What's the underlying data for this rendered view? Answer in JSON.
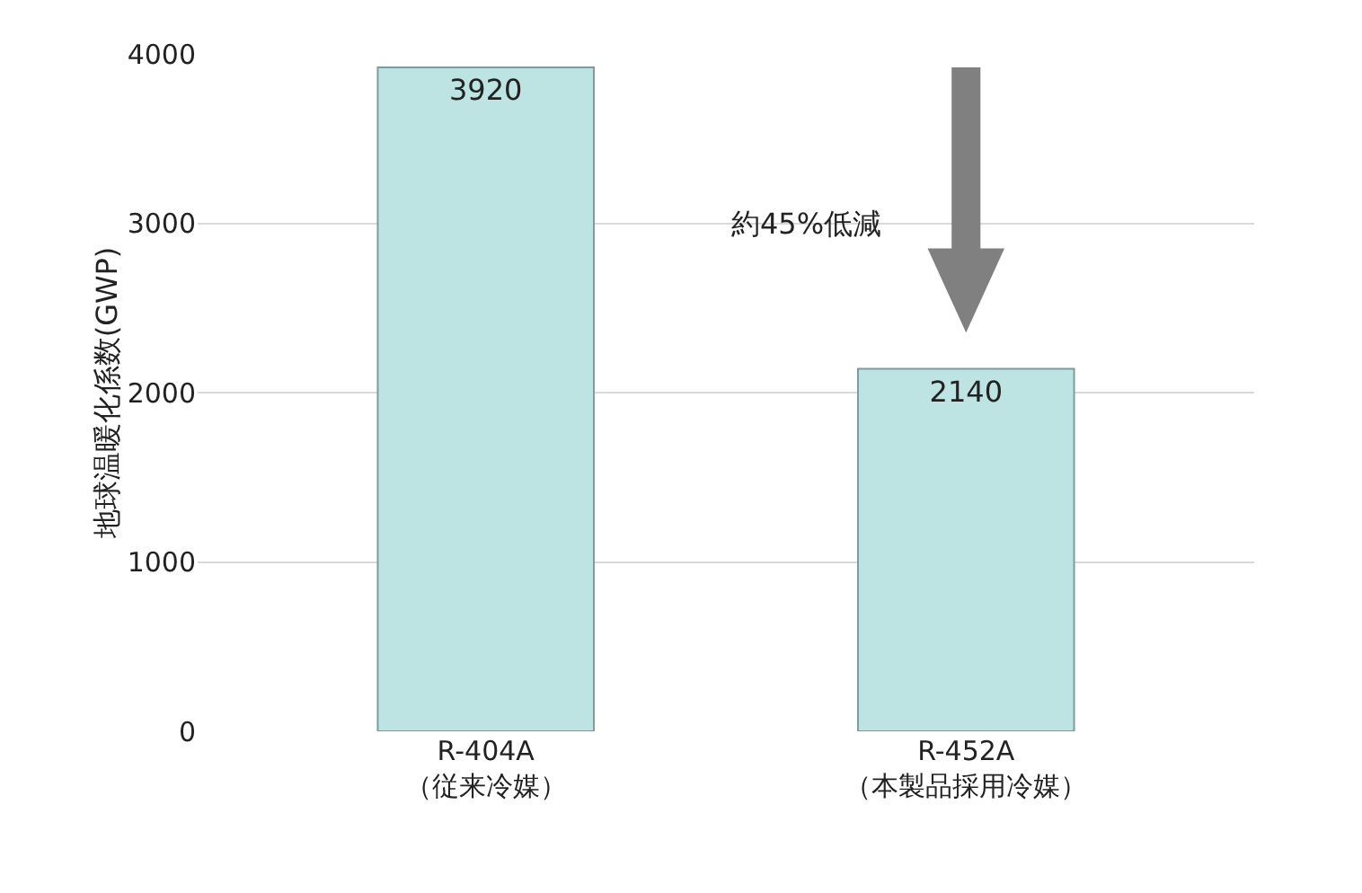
{
  "chart_data": {
    "type": "bar",
    "categories": [
      "R-404A\n（従来冷媒）",
      "R-452A\n（本製品採用冷媒）"
    ],
    "values": [
      3920,
      2140
    ],
    "color": "#bde3e3",
    "ylim": [
      0,
      4000
    ],
    "yticks": [
      0,
      1000,
      2000,
      3000,
      4000
    ],
    "ylabel": "地球温暖化係数(GWP)",
    "grid": "y",
    "data_labels": true,
    "annotations": [
      "約45%低減"
    ]
  }
}
